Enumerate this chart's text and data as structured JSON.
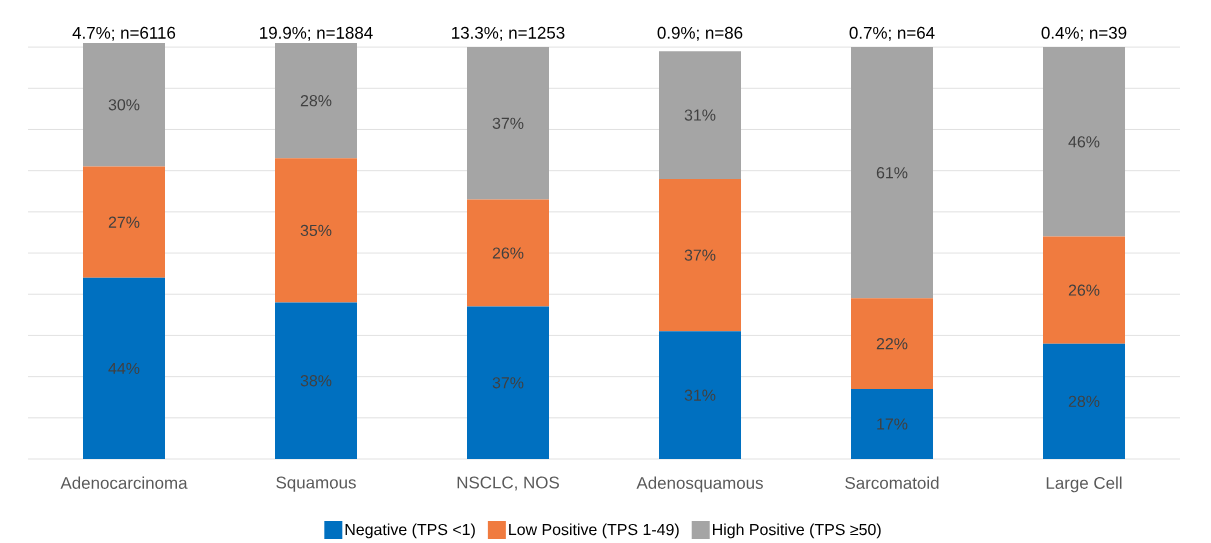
{
  "chart_data": {
    "type": "bar",
    "stacked": true,
    "categories": [
      "Adenocarcinoma",
      "Squamous",
      "NSCLC, NOS",
      "Adenosquamous",
      "Sarcomatoid",
      "Large Cell"
    ],
    "series": [
      {
        "name": "Negative (TPS <1)",
        "color": "#0070c0",
        "values": [
          44,
          38,
          37,
          31,
          17,
          28
        ],
        "value_labels": [
          "44%",
          "38%",
          "37%",
          "31%",
          "17%",
          "28%"
        ]
      },
      {
        "name": "Low Positive (TPS 1-49)",
        "color": "#f07b3f",
        "values": [
          27,
          35,
          26,
          37,
          22,
          26
        ],
        "value_labels": [
          "27%",
          "35%",
          "26%",
          "37%",
          "22%",
          "26%"
        ]
      },
      {
        "name": "High Positive (TPS ≥50)",
        "color": "#a5a5a5",
        "values": [
          30,
          28,
          37,
          31,
          61,
          46
        ],
        "value_labels": [
          "30%",
          "28%",
          "37%",
          "31%",
          "61%",
          "46%"
        ]
      }
    ],
    "annotations": [
      "4.7%; n=6116",
      "19.9%; n=1884",
      "13.3%; n=1253",
      "0.9%; n=86",
      "0.7%; n=64",
      "0.4%; n=39"
    ],
    "ylim": [
      0,
      101
    ],
    "yticks": [
      {
        "value": 0,
        "label": null
      },
      {
        "value": 10,
        "label": null
      },
      {
        "value": 20,
        "label": null
      },
      {
        "value": 30,
        "label": null
      },
      {
        "value": 40,
        "label": null
      },
      {
        "value": 50,
        "label": null
      },
      {
        "value": 60,
        "label": null
      },
      {
        "value": 70,
        "label": null
      },
      {
        "value": 80,
        "label": null
      },
      {
        "value": 90,
        "label": null
      },
      {
        "value": 100,
        "label": null
      }
    ],
    "tick_labels": "x",
    "grid": "y",
    "legend": "bottom"
  }
}
